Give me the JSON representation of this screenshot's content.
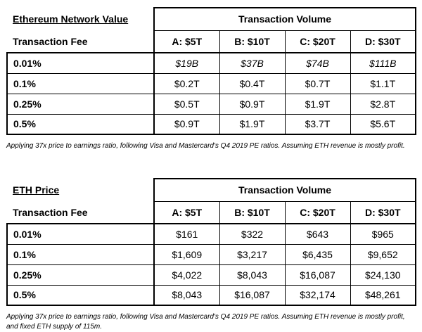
{
  "tables": [
    {
      "title": "Ethereum Network Value",
      "fee_label": "Transaction Fee",
      "volume_header": "Transaction Volume",
      "columns": [
        "A: $5T",
        "B: $10T",
        "C: $20T",
        "D: $30T"
      ],
      "rows": [
        {
          "fee": "0.01%",
          "values": [
            "$19B",
            "$37B",
            "$74B",
            "$111B"
          ]
        },
        {
          "fee": "0.1%",
          "values": [
            "$0.2T",
            "$0.4T",
            "$0.7T",
            "$1.1T"
          ]
        },
        {
          "fee": "0.25%",
          "values": [
            "$0.5T",
            "$0.9T",
            "$1.9T",
            "$2.8T"
          ]
        },
        {
          "fee": "0.5%",
          "values": [
            "$0.9T",
            "$1.9T",
            "$3.7T",
            "$5.6T"
          ]
        }
      ],
      "footnote": "Applying 37x price to earnings ratio, following Visa and Mastercard's Q4 2019 PE ratios. Assuming ETH revenue is mostly profit."
    },
    {
      "title": "ETH Price",
      "fee_label": "Transaction Fee",
      "volume_header": "Transaction Volume",
      "columns": [
        "A: $5T",
        "B: $10T",
        "C: $20T",
        "D: $30T"
      ],
      "rows": [
        {
          "fee": "0.01%",
          "values": [
            "$161",
            "$322",
            "$643",
            "$965"
          ]
        },
        {
          "fee": "0.1%",
          "values": [
            "$1,609",
            "$3,217",
            "$6,435",
            "$9,652"
          ]
        },
        {
          "fee": "0.25%",
          "values": [
            "$4,022",
            "$8,043",
            "$16,087",
            "$24,130"
          ]
        },
        {
          "fee": "0.5%",
          "values": [
            "$8,043",
            "$16,087",
            "$32,174",
            "$48,261"
          ]
        }
      ],
      "footnote": "Applying 37x price to earnings ratio, following Visa and Mastercard's Q4 2019 PE ratios. Assuming ETH revenue is mostly profit, and fixed ETH supply of 115m."
    }
  ],
  "colors": {
    "text": "#000000",
    "border": "#000000",
    "background": "#ffffff"
  }
}
